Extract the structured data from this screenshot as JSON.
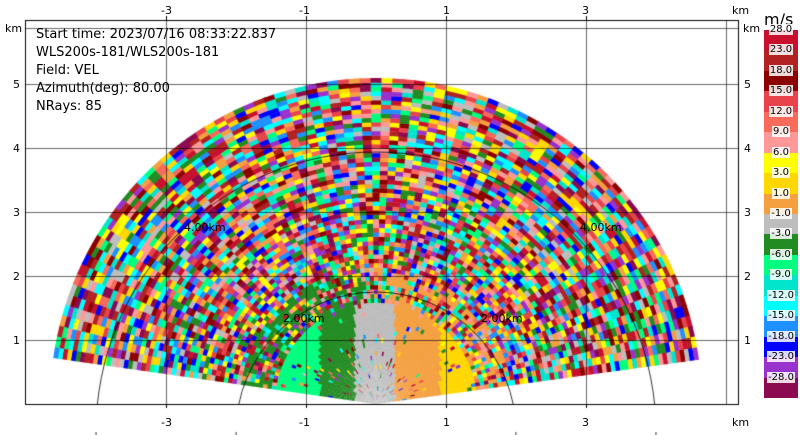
{
  "info": {
    "start_time": "Start time: 2023/07/16 08:33:22.837",
    "station": "WLS200s-181/WLS200s-181",
    "field": "Field: VEL",
    "azimuth": "Azimuth(deg): 80.00",
    "nrays": "NRays: 85"
  },
  "axes": {
    "x_ticks": [
      "-3",
      "-1",
      "1",
      "3"
    ],
    "y_ticks": [
      "1",
      "2",
      "3",
      "4",
      "5"
    ],
    "unit": "km",
    "range_rings": [
      "2.00km",
      "4.00km"
    ]
  },
  "colorbar": {
    "unit": "m/s",
    "labels": [
      "28.0",
      "23.0",
      "18.0",
      "15.0",
      "12.0",
      "9.0",
      "6.0",
      "3.0",
      "1.0",
      "-1.0",
      "-3.0",
      "-6.0",
      "-9.0",
      "-12.0",
      "-15.0",
      "-18.0",
      "-23.0",
      "-28.0"
    ],
    "colors": [
      "#c8102e",
      "#b22222",
      "#8b0000",
      "#e8434a",
      "#f86a5a",
      "#ff9999",
      "#ffff00",
      "#ffd700",
      "#f4a040",
      "#bdbdbd",
      "#228b22",
      "#00ff7f",
      "#00e5cc",
      "#00ffff",
      "#1e90ff",
      "#0000ff",
      "#9932cc",
      "#8b0a50"
    ]
  }
}
